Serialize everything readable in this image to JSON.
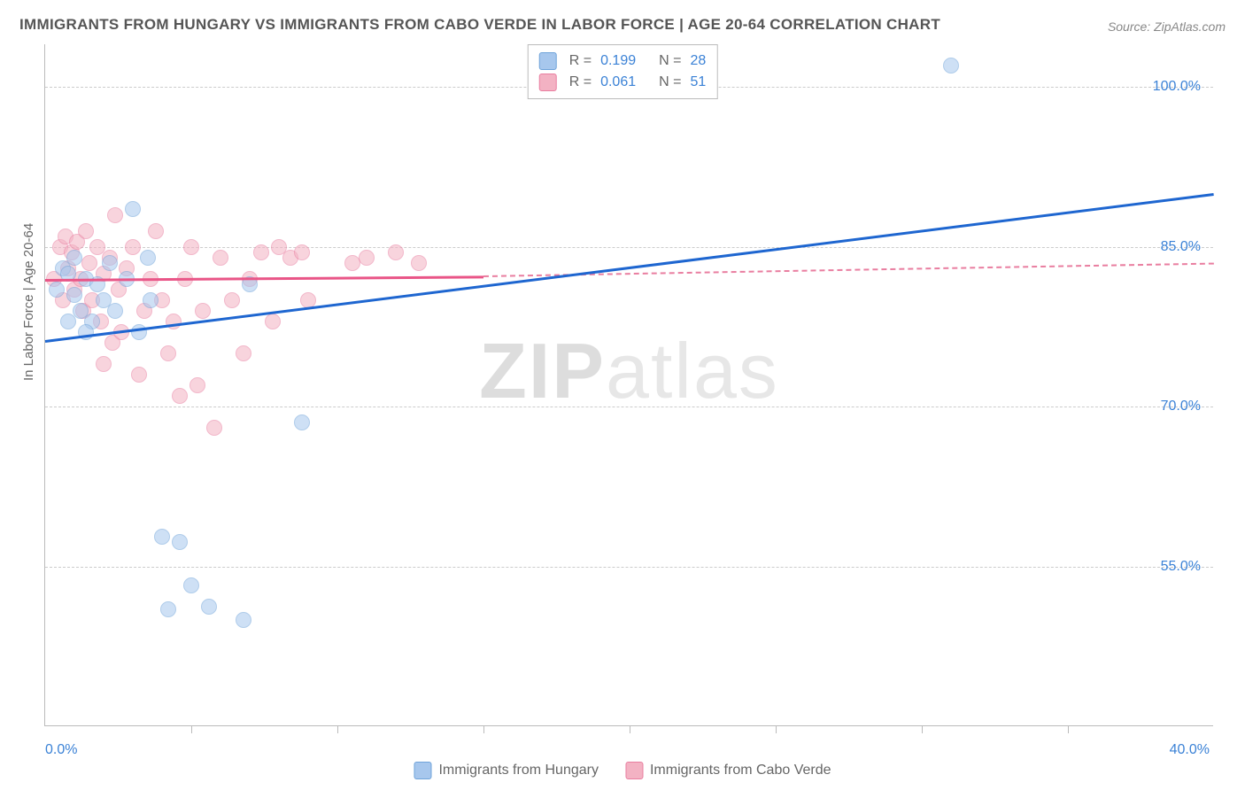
{
  "title": "IMMIGRANTS FROM HUNGARY VS IMMIGRANTS FROM CABO VERDE IN LABOR FORCE | AGE 20-64 CORRELATION CHART",
  "source": "Source: ZipAtlas.com",
  "ylabel": "In Labor Force | Age 20-64",
  "watermark_a": "ZIP",
  "watermark_b": "atlas",
  "chart": {
    "type": "scatter",
    "xlim": [
      0,
      40
    ],
    "ylim": [
      40,
      104
    ],
    "xtick_positions": [
      0,
      5,
      10,
      15,
      20,
      25,
      30,
      35,
      40
    ],
    "xtick_labels": {
      "0": "0.0%",
      "40": "40.0%"
    },
    "ytick_values": [
      55,
      70,
      85,
      100
    ],
    "ytick_labels": [
      "55.0%",
      "70.0%",
      "85.0%",
      "100.0%"
    ],
    "grid_color": "#cccccc",
    "background_color": "#ffffff",
    "axis_color": "#bbbbbb",
    "tick_label_color": "#3b82d6",
    "series": [
      {
        "name": "Immigrants from Hungary",
        "color_fill": "#a7c7ed",
        "color_border": "#6fa3da",
        "fill_opacity": 0.55,
        "marker_radius": 9,
        "R_label": "R = ",
        "R_value": "0.199",
        "N_label": "N = ",
        "N_value": "28",
        "trend": {
          "x1": 0,
          "y1": 76.2,
          "x2": 40,
          "y2": 90.0,
          "color": "#1e66d0",
          "width": 3
        },
        "points": [
          [
            0.4,
            81.0
          ],
          [
            0.6,
            83.0
          ],
          [
            0.8,
            82.5
          ],
          [
            1.0,
            80.5
          ],
          [
            1.2,
            79.0
          ],
          [
            1.4,
            82.0
          ],
          [
            1.6,
            78.0
          ],
          [
            1.8,
            81.5
          ],
          [
            2.2,
            83.5
          ],
          [
            2.0,
            80.0
          ],
          [
            2.4,
            79.0
          ],
          [
            2.8,
            82.0
          ],
          [
            3.0,
            88.5
          ],
          [
            3.2,
            77.0
          ],
          [
            3.6,
            80.0
          ],
          [
            4.2,
            51.0
          ],
          [
            5.6,
            51.2
          ],
          [
            4.0,
            57.8
          ],
          [
            4.6,
            57.3
          ],
          [
            5.0,
            53.2
          ],
          [
            6.8,
            50.0
          ],
          [
            8.8,
            68.5
          ],
          [
            7.0,
            81.5
          ],
          [
            3.5,
            84.0
          ],
          [
            1.0,
            84.0
          ],
          [
            1.4,
            77.0
          ],
          [
            0.8,
            78.0
          ],
          [
            31.0,
            102.0
          ]
        ]
      },
      {
        "name": "Immigrants from Cabo Verde",
        "color_fill": "#f3b2c3",
        "color_border": "#e97ea0",
        "fill_opacity": 0.55,
        "marker_radius": 9,
        "R_label": "R = ",
        "R_value": "0.061",
        "N_label": "N = ",
        "N_value": "51",
        "trend_solid": {
          "x1": 0,
          "y1": 82.0,
          "x2": 15,
          "y2": 82.3,
          "color": "#e95587",
          "width": 3
        },
        "trend_dashed": {
          "x1": 15,
          "y1": 82.3,
          "x2": 40,
          "y2": 83.5,
          "color": "#e97ea0",
          "width": 2
        },
        "points": [
          [
            0.3,
            82.0
          ],
          [
            0.5,
            85.0
          ],
          [
            0.6,
            80.0
          ],
          [
            0.7,
            86.0
          ],
          [
            0.8,
            83.0
          ],
          [
            0.9,
            84.5
          ],
          [
            1.0,
            81.0
          ],
          [
            1.1,
            85.5
          ],
          [
            1.2,
            82.0
          ],
          [
            1.3,
            79.0
          ],
          [
            1.4,
            86.5
          ],
          [
            1.5,
            83.5
          ],
          [
            1.6,
            80.0
          ],
          [
            1.8,
            85.0
          ],
          [
            1.9,
            78.0
          ],
          [
            2.0,
            82.5
          ],
          [
            2.2,
            84.0
          ],
          [
            2.3,
            76.0
          ],
          [
            2.4,
            88.0
          ],
          [
            2.5,
            81.0
          ],
          [
            2.6,
            77.0
          ],
          [
            2.8,
            83.0
          ],
          [
            3.0,
            85.0
          ],
          [
            3.2,
            73.0
          ],
          [
            3.4,
            79.0
          ],
          [
            3.6,
            82.0
          ],
          [
            3.8,
            86.5
          ],
          [
            4.0,
            80.0
          ],
          [
            4.2,
            75.0
          ],
          [
            4.4,
            78.0
          ],
          [
            4.6,
            71.0
          ],
          [
            4.8,
            82.0
          ],
          [
            5.0,
            85.0
          ],
          [
            5.2,
            72.0
          ],
          [
            5.4,
            79.0
          ],
          [
            5.8,
            68.0
          ],
          [
            6.0,
            84.0
          ],
          [
            6.4,
            80.0
          ],
          [
            6.8,
            75.0
          ],
          [
            7.0,
            82.0
          ],
          [
            7.4,
            84.5
          ],
          [
            7.8,
            78.0
          ],
          [
            8.0,
            85.0
          ],
          [
            8.4,
            84.0
          ],
          [
            8.8,
            84.5
          ],
          [
            9.0,
            80.0
          ],
          [
            10.5,
            83.5
          ],
          [
            11.0,
            84.0
          ],
          [
            12.0,
            84.5
          ],
          [
            12.8,
            83.5
          ],
          [
            2.0,
            74.0
          ]
        ]
      }
    ]
  }
}
